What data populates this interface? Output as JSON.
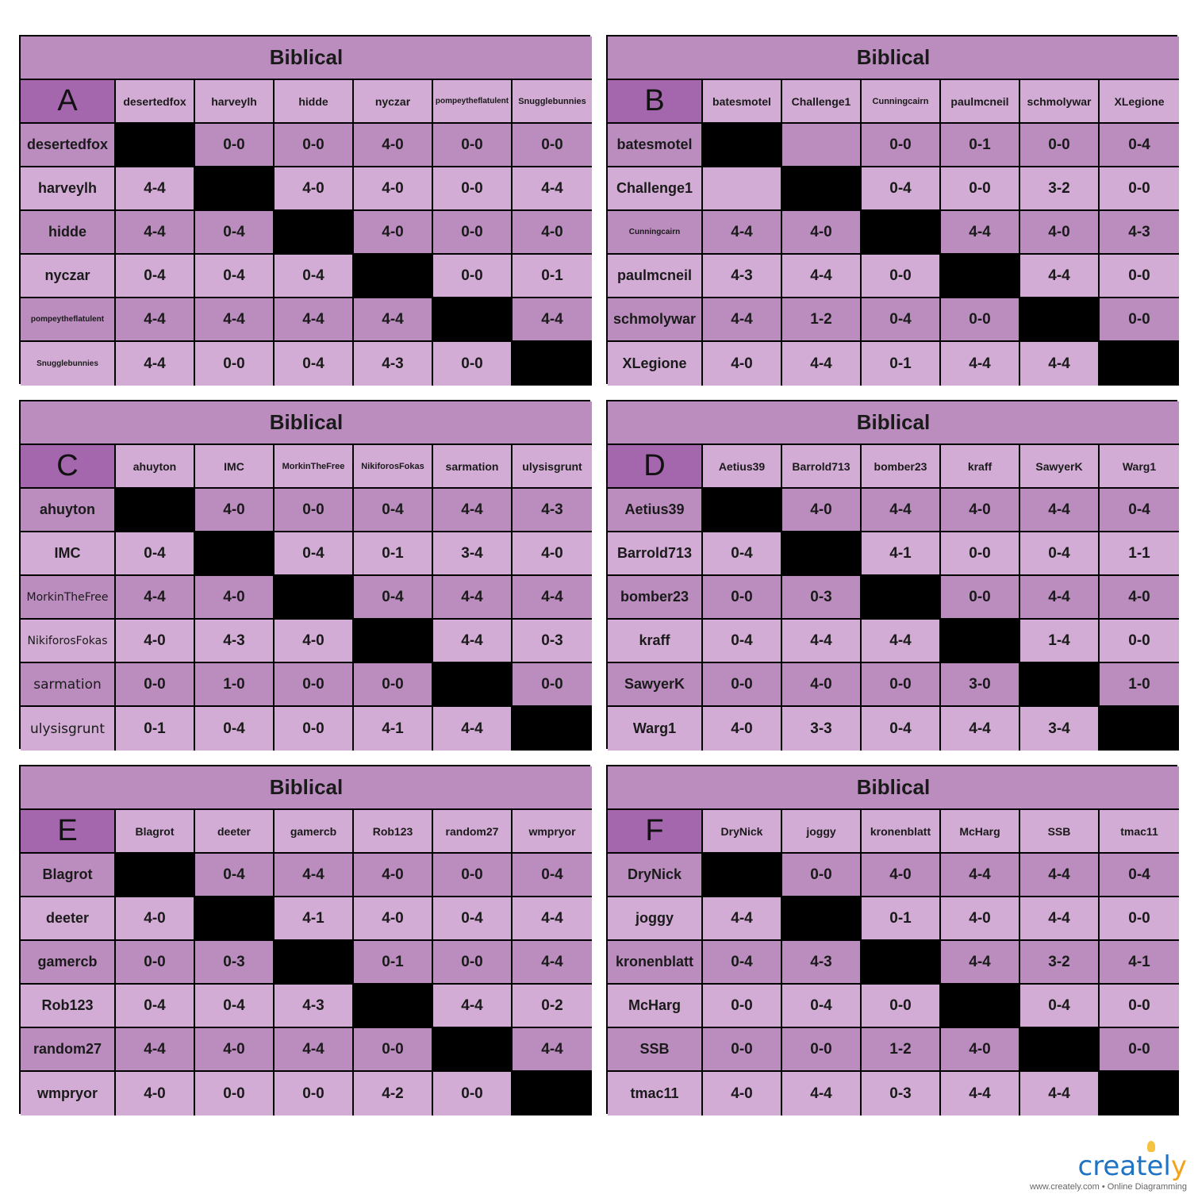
{
  "groups": [
    {
      "title": "Biblical",
      "letter": "A",
      "players": [
        "desertedfox",
        "harveylh",
        "hidde",
        "nyczar",
        "pompeytheflatulent",
        "Snugglebunnies"
      ],
      "results": [
        [
          "",
          "0-0",
          "0-0",
          "4-0",
          "0-0",
          "0-0"
        ],
        [
          "4-4",
          "",
          "4-0",
          "4-0",
          "0-0",
          "4-4"
        ],
        [
          "4-4",
          "0-4",
          "",
          "4-0",
          "0-0",
          "4-0"
        ],
        [
          "0-4",
          "0-4",
          "0-4",
          "",
          "0-0",
          "0-1"
        ],
        [
          "4-4",
          "4-4",
          "4-4",
          "4-4",
          "",
          "4-4"
        ],
        [
          "4-4",
          "0-0",
          "0-4",
          "4-3",
          "0-0",
          ""
        ]
      ]
    },
    {
      "title": "Biblical",
      "letter": "B",
      "players": [
        "batesmotel",
        "Challenge1",
        "Cunningcairn",
        "paulmcneil",
        "schmolywar",
        "XLegione"
      ],
      "results": [
        [
          "",
          "",
          "0-0",
          "0-1",
          "0-0",
          "0-4"
        ],
        [
          "",
          "",
          "0-4",
          "0-0",
          "3-2",
          "0-0"
        ],
        [
          "4-4",
          "4-0",
          "",
          "4-4",
          "4-0",
          "4-3"
        ],
        [
          "4-3",
          "4-4",
          "0-0",
          "",
          "4-4",
          "0-0"
        ],
        [
          "4-4",
          "1-2",
          "0-4",
          "0-0",
          "",
          "0-0"
        ],
        [
          "4-0",
          "4-4",
          "0-1",
          "4-4",
          "4-4",
          ""
        ]
      ]
    },
    {
      "title": "Biblical",
      "letter": "C",
      "players": [
        "ahuyton",
        "IMC",
        "MorkinTheFree",
        "NikiforosFokas",
        "sarmation",
        "ulysisgrunt"
      ],
      "results": [
        [
          "",
          "4-0",
          "0-0",
          "0-4",
          "4-4",
          "4-3"
        ],
        [
          "0-4",
          "",
          "0-4",
          "0-1",
          "3-4",
          "4-0"
        ],
        [
          "4-4",
          "4-0",
          "",
          "0-4",
          "4-4",
          "4-4"
        ],
        [
          "4-0",
          "4-3",
          "4-0",
          "",
          "4-4",
          "0-3"
        ],
        [
          "0-0",
          "1-0",
          "0-0",
          "0-0",
          "",
          "0-0"
        ],
        [
          "0-1",
          "0-4",
          "0-0",
          "4-1",
          "4-4",
          ""
        ]
      ]
    },
    {
      "title": "Biblical",
      "letter": "D",
      "players": [
        "Aetius39",
        "Barrold713",
        "bomber23",
        "kraff",
        "SawyerK",
        "Warg1"
      ],
      "results": [
        [
          "",
          "4-0",
          "4-4",
          "4-0",
          "4-4",
          "0-4"
        ],
        [
          "0-4",
          "",
          "4-1",
          "0-0",
          "0-4",
          "1-1"
        ],
        [
          "0-0",
          "0-3",
          "",
          "0-0",
          "4-4",
          "4-0"
        ],
        [
          "0-4",
          "4-4",
          "4-4",
          "",
          "1-4",
          "0-0"
        ],
        [
          "0-0",
          "4-0",
          "0-0",
          "3-0",
          "",
          "1-0"
        ],
        [
          "4-0",
          "3-3",
          "0-4",
          "4-4",
          "3-4",
          ""
        ]
      ]
    },
    {
      "title": "Biblical",
      "letter": "E",
      "players": [
        "Blagrot",
        "deeter",
        "gamercb",
        "Rob123",
        "random27",
        "wmpryor"
      ],
      "results": [
        [
          "",
          "0-4",
          "4-4",
          "4-0",
          "0-0",
          "0-4"
        ],
        [
          "4-0",
          "",
          "4-1",
          "4-0",
          "0-4",
          "4-4"
        ],
        [
          "0-0",
          "0-3",
          "",
          "0-1",
          "0-0",
          "4-4"
        ],
        [
          "0-4",
          "0-4",
          "4-3",
          "",
          "4-4",
          "0-2"
        ],
        [
          "4-4",
          "4-0",
          "4-4",
          "0-0",
          "",
          "4-4"
        ],
        [
          "4-0",
          "0-0",
          "0-0",
          "4-2",
          "0-0",
          ""
        ]
      ]
    },
    {
      "title": "Biblical",
      "letter": "F",
      "players": [
        "DryNick",
        "joggy",
        "kronenblatt",
        "McHarg",
        "SSB",
        "tmac11"
      ],
      "results": [
        [
          "",
          "0-0",
          "4-0",
          "4-4",
          "4-4",
          "0-4"
        ],
        [
          "4-4",
          "",
          "0-1",
          "4-0",
          "4-4",
          "0-0"
        ],
        [
          "0-4",
          "4-3",
          "",
          "4-4",
          "3-2",
          "4-1"
        ],
        [
          "0-0",
          "0-4",
          "0-0",
          "",
          "0-4",
          "0-0"
        ],
        [
          "0-0",
          "0-0",
          "1-2",
          "4-0",
          "",
          "0-0"
        ],
        [
          "4-0",
          "4-4",
          "0-3",
          "4-4",
          "4-4",
          ""
        ]
      ]
    }
  ],
  "logo": {
    "brand": "creately",
    "tagline": "www.creately.com • Online Diagramming"
  }
}
